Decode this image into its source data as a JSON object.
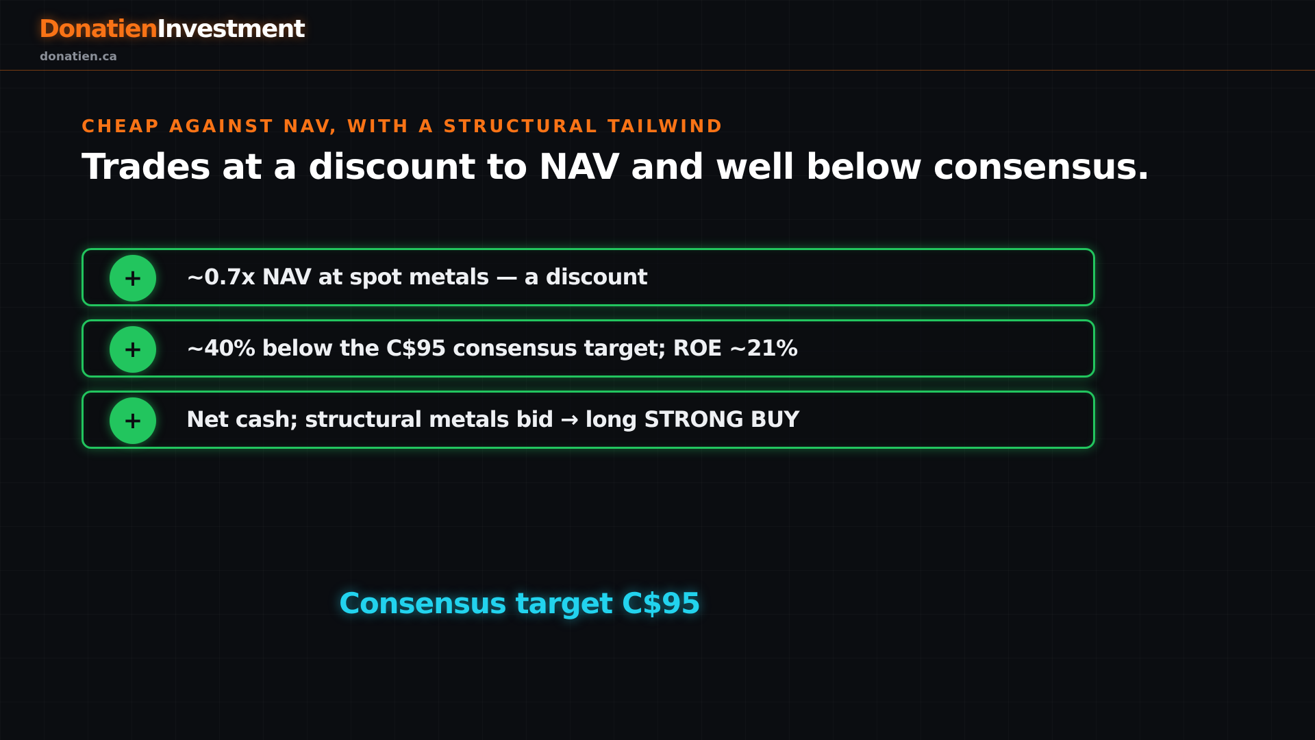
{
  "header": {
    "brand_part1": "Donatien",
    "brand_part2": "Investment",
    "site": "donatien.ca"
  },
  "slide": {
    "kicker": "CHEAP AGAINST NAV, WITH A STRUCTURAL TAILWIND",
    "headline": "Trades at a discount to NAV and well below consensus.",
    "points": [
      {
        "icon": "plus-icon",
        "symbol": "+",
        "text": "~0.7x NAV at spot metals — a discount"
      },
      {
        "icon": "plus-icon",
        "symbol": "+",
        "text": "~40% below the C$95 consensus target; ROE ~21%"
      },
      {
        "icon": "plus-icon",
        "symbol": "+",
        "text": "Net cash; structural metals bid → long STRONG BUY"
      }
    ],
    "callout": "Consensus target C$95"
  },
  "colors": {
    "background": "#0b0d11",
    "accent_orange": "#f97316",
    "positive_green": "#22c55e",
    "callout_cyan": "#22d3ee"
  }
}
